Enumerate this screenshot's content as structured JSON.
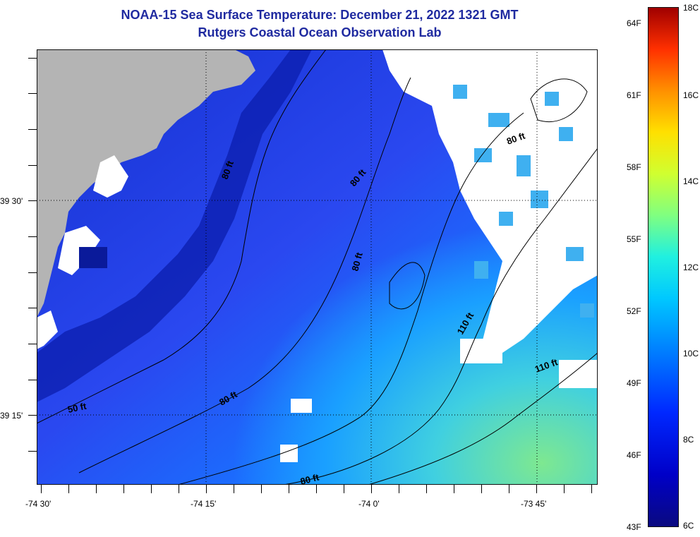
{
  "title": {
    "line1": "NOAA-15 Sea Surface Temperature:  December 21, 2022 1321 GMT",
    "line2": "Rutgers Coastal Ocean Observation Lab"
  },
  "map": {
    "lon_labels": [
      "-74 30'",
      "-74 15'",
      "-74 0'",
      "-73 45'"
    ],
    "lat_labels": [
      "39 30'",
      "39 15'"
    ],
    "contours": [
      "50 ft",
      "80 ft",
      "80 ft",
      "80 ft",
      "80 ft",
      "80 ft",
      "110 ft",
      "110 ft",
      "80 ft"
    ],
    "colors": {
      "land": "#b4b4b4",
      "cloud": "#ffffff",
      "cold": "#0a1a9a",
      "mid": "#2a3fe0",
      "warm": "#1e90ff",
      "warmer": "#4cd0e8",
      "warmest": "#6ee6a0"
    }
  },
  "colorbar": {
    "celsius": [
      "18C",
      "16C",
      "14C",
      "12C",
      "10C",
      "8C",
      "6C"
    ],
    "fahrenheit": [
      "64F",
      "61F",
      "58F",
      "55F",
      "52F",
      "49F",
      "46F",
      "43F"
    ]
  }
}
